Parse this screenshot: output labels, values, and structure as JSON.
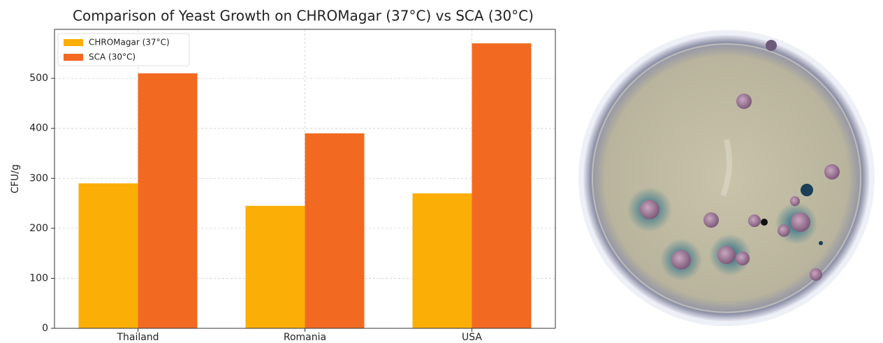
{
  "chart_data": {
    "type": "bar",
    "title": "Comparison of Yeast Growth on CHROMagar (37°C) vs SCA (30°C)",
    "y_label": "CFU/g",
    "categories": [
      "Thailand",
      "Romania",
      "USA"
    ],
    "series": [
      {
        "name": "CHROMagar (37°C)",
        "color": "#fbae06",
        "values": [
          290,
          245,
          270
        ]
      },
      {
        "name": "SCA (30°C)",
        "color": "#f26a21",
        "values": [
          510,
          390,
          570
        ]
      }
    ],
    "ylim": [
      0,
      598
    ],
    "yticks": [
      0,
      100,
      200,
      300,
      400,
      500
    ],
    "grid": true,
    "legend": "upper-left"
  }
}
